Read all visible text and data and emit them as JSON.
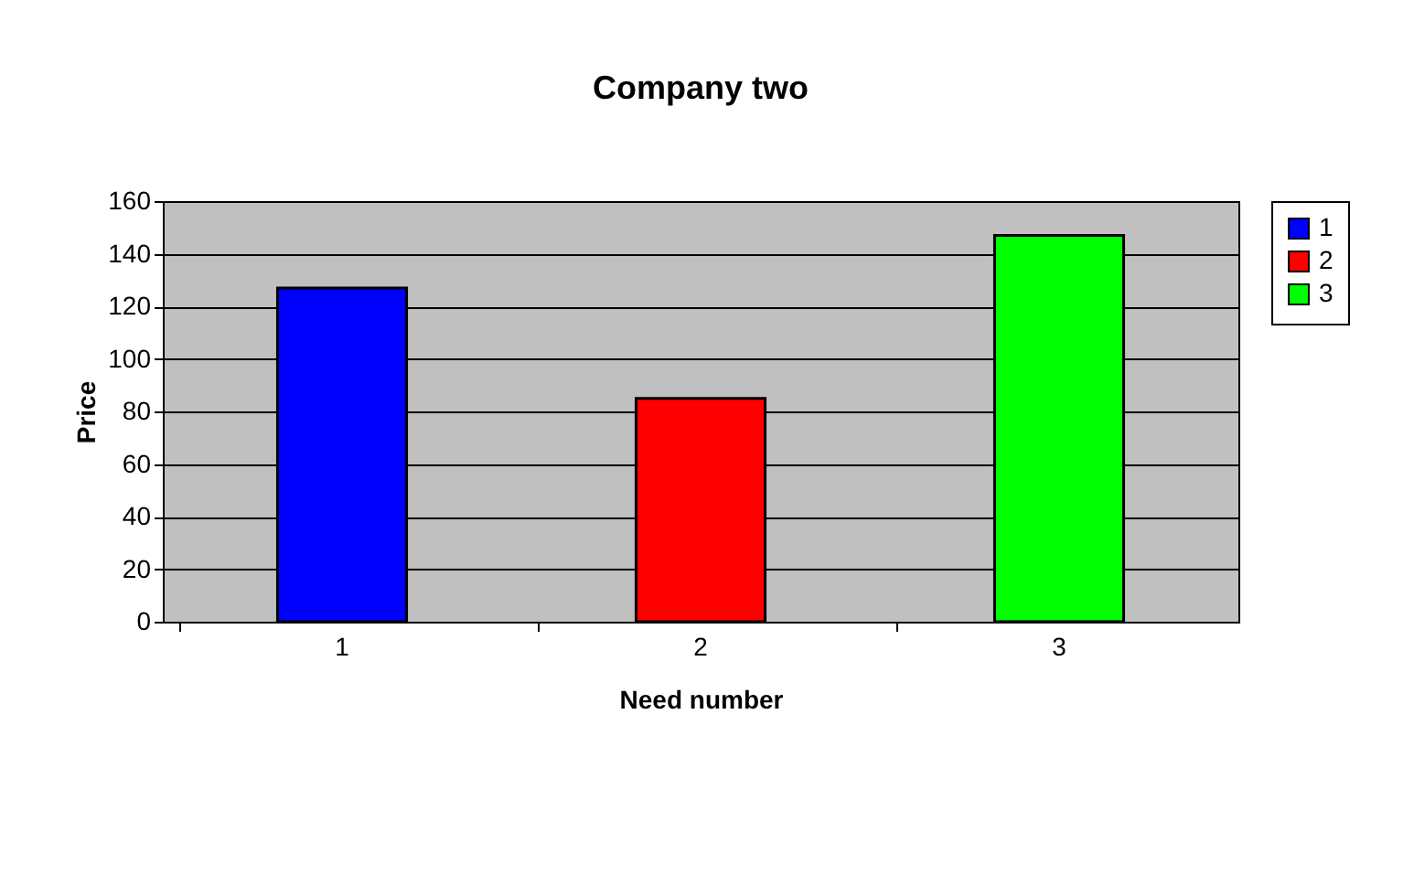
{
  "chart_data": {
    "type": "bar",
    "title": "Company two",
    "xlabel": "Need number",
    "ylabel": "Price",
    "categories": [
      "1",
      "2",
      "3"
    ],
    "series": [
      {
        "name": "1",
        "color": "#0000ff",
        "values": [
          127,
          null,
          null
        ]
      },
      {
        "name": "2",
        "color": "#ff0000",
        "values": [
          null,
          85,
          null
        ]
      },
      {
        "name": "3",
        "color": "#00ff00",
        "values": [
          null,
          null,
          147
        ]
      }
    ],
    "ylim": [
      0,
      160
    ],
    "yticks": [
      0,
      20,
      40,
      60,
      80,
      100,
      120,
      140,
      160
    ],
    "grid": "y",
    "legend": "right"
  }
}
